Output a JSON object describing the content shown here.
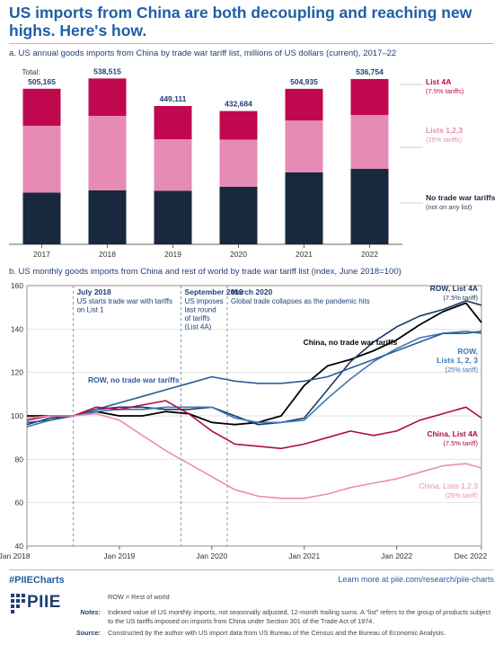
{
  "title": "US imports from China are both decoupling and reaching new highs. Here's how.",
  "subhead_a": "a. US annual goods imports from China by trade war tariff list, millions of US dollars (current), 2017–22",
  "subhead_b": "b. US monthly goods imports from China and rest of world by trade war tariff list (index, June 2018=100)",
  "footer": {
    "hashtag": "#PIIECharts",
    "learn_more": "Learn more at piie.com/research/piie-charts",
    "logo_text": "PIIE",
    "row_def": "ROW = Rest of world",
    "notes_label": "Notes:",
    "notes_text": "Indexed value of US monthly imports, not seasonally adjusted, 12-month trailing sums. A “list” refers to the group of products subject to the US tariffs imposed on imports from China under Section 301 of the Trade Act of 1974.",
    "source_label": "Source:",
    "source_text": "Constructed by the author with US import data from US Bureau of the Census and the Bureau of Economic Analysis."
  },
  "chart_data": [
    {
      "type": "bar",
      "stacked": true,
      "categories": [
        "2017",
        "2018",
        "2019",
        "2020",
        "2021",
        "2022"
      ],
      "totals_label": "Total:",
      "totals": [
        "505,165",
        "538,515",
        "449,111",
        "432,684",
        "504,935",
        "536,754"
      ],
      "total_values": [
        505165,
        538515,
        449111,
        432684,
        504935,
        536754
      ],
      "series": [
        {
          "name": "No trade war tariffs",
          "sub": "(not on any list)",
          "color": "#18293e",
          "values": [
            168000,
            175000,
            174000,
            187000,
            234000,
            245000
          ]
        },
        {
          "name": "Lists 1,2,3",
          "sub": "(25% tariffs)",
          "color": "#e68bb5",
          "values": [
            217000,
            242000,
            167000,
            153000,
            168000,
            175000
          ]
        },
        {
          "name": "List 4A",
          "sub": "(7.5% tariffs)",
          "color": "#c0084f",
          "values": [
            120165,
            121515,
            108111,
            92684,
            102935,
            116754
          ]
        }
      ],
      "ylim": [
        0,
        600000
      ]
    },
    {
      "type": "line",
      "xlabel_ticks": [
        "Jan 2018",
        "Jan 2019",
        "Jan 2020",
        "Jan 2021",
        "Jan 2022",
        "Dec 2022"
      ],
      "xlim": [
        2018.0,
        2022.917
      ],
      "ylim": [
        40,
        160
      ],
      "yticks": [
        "40",
        "60",
        "80",
        "100",
        "120",
        "140",
        "160"
      ],
      "grid": true,
      "x": [
        2018.0,
        2018.25,
        2018.5,
        2018.75,
        2019.0,
        2019.25,
        2019.5,
        2019.75,
        2020.0,
        2020.25,
        2020.5,
        2020.75,
        2021.0,
        2021.25,
        2021.5,
        2021.75,
        2022.0,
        2022.25,
        2022.5,
        2022.75,
        2022.917
      ],
      "series": [
        {
          "name": "China, no trade war tariffs",
          "color": "#000000",
          "width": 1.8,
          "values": [
            100,
            100,
            100,
            102,
            100,
            100,
            102,
            101,
            97,
            96,
            97,
            100,
            114,
            123,
            126,
            130,
            135,
            142,
            148,
            152,
            143
          ]
        },
        {
          "name": "ROW, List 4A",
          "sub": "(7.5% tariff)",
          "color": "#1c3a63",
          "width": 1.6,
          "values": [
            96,
            99,
            100,
            103,
            104,
            104,
            103,
            103,
            104,
            100,
            96,
            97,
            99,
            112,
            125,
            134,
            141,
            146,
            149,
            153,
            151
          ]
        },
        {
          "name": "ROW, Lists 1, 2, 3",
          "sub": "(25% tariff)",
          "color": "#3e78b8",
          "width": 1.6,
          "values": [
            95,
            98,
            100,
            102,
            103,
            103,
            104,
            104,
            104,
            99,
            97,
            97,
            98,
            108,
            117,
            125,
            131,
            136,
            138,
            139,
            138
          ]
        },
        {
          "name": "ROW, no trade war tariffs",
          "color": "#2a5d96",
          "width": 1.6,
          "values": [
            97,
            98,
            100,
            103,
            106,
            109,
            112,
            115,
            118,
            116,
            115,
            115,
            116,
            118,
            122,
            126,
            130,
            134,
            138,
            138,
            139
          ]
        },
        {
          "name": "China, List 4A",
          "sub": "(7.5% tariff)",
          "color": "#b00a4a",
          "width": 1.6,
          "values": [
            98,
            100,
            100,
            104,
            103,
            105,
            107,
            101,
            93,
            87,
            86,
            85,
            87,
            90,
            93,
            91,
            93,
            98,
            101,
            104,
            99
          ]
        },
        {
          "name": "China, Lists 1,2,3",
          "sub": "(25% tariff)",
          "color": "#e98dba",
          "width": 1.6,
          "values": [
            99,
            100,
            100,
            101,
            98,
            91,
            84,
            78,
            72,
            66,
            63,
            62,
            62,
            64,
            67,
            69,
            71,
            74,
            77,
            78,
            76
          ]
        }
      ],
      "annotations": [
        {
          "title": "July 2018",
          "text": [
            "US starts trade war with tariffs",
            "on List 1"
          ],
          "x": 2018.5
        },
        {
          "title": "September 2019",
          "text": [
            "US imposes",
            "last round",
            "of tariffs",
            "(List 4A)"
          ],
          "x": 2019.667
        },
        {
          "title": "March 2020",
          "text": [
            "Global trade collapses as the pandemic hits"
          ],
          "x": 2020.167
        }
      ]
    }
  ]
}
